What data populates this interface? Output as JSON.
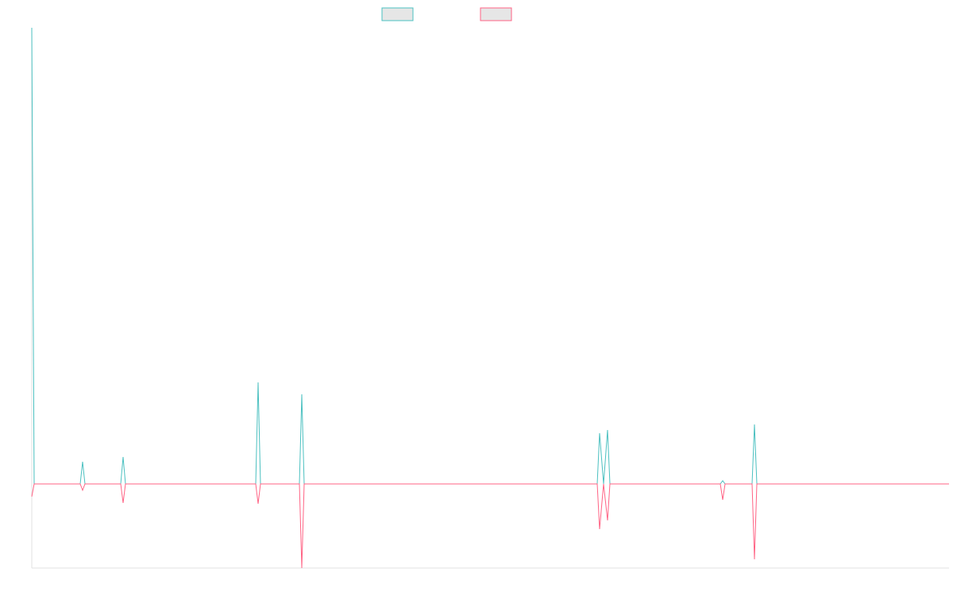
{
  "chart_data": {
    "type": "line",
    "xlim": [
      0,
      1155
    ],
    "ylim": [
      -106,
      575
    ],
    "series": [
      {
        "color": "#4bc0c0",
        "x": [
          0,
          3,
          61,
          64,
          67,
          112,
          115,
          118,
          282,
          285,
          288,
          337,
          340,
          343,
          712,
          715,
          720,
          725,
          728,
          867,
          870,
          873,
          907,
          910,
          913,
          1155
        ],
        "values": [
          575,
          0,
          0,
          28,
          0,
          0,
          34,
          0,
          0,
          128,
          0,
          0,
          113,
          0,
          0,
          64,
          0,
          68,
          0,
          0,
          4,
          0,
          0,
          75,
          0,
          0
        ]
      },
      {
        "color": "#ff6384",
        "x": [
          0,
          3,
          61,
          64,
          67,
          112,
          115,
          118,
          282,
          285,
          288,
          337,
          340,
          343,
          712,
          715,
          720,
          725,
          728,
          867,
          870,
          873,
          907,
          910,
          913,
          1155
        ],
        "values": [
          -16,
          0,
          0,
          -8,
          0,
          0,
          -24,
          0,
          0,
          -25,
          0,
          0,
          -106,
          0,
          0,
          -57,
          0,
          -46,
          0,
          0,
          -20,
          0,
          0,
          -95,
          0,
          0
        ]
      }
    ]
  }
}
